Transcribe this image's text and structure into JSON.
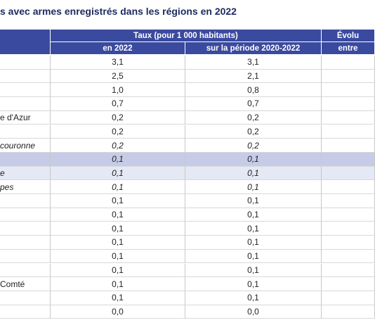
{
  "header": {
    "title": "s avec armes enregistrés dans les régions en 2022"
  },
  "table": {
    "group_headers": [
      "Taux (pour 1 000 habitants)",
      "Évolu"
    ],
    "columns": [
      "en 2022",
      "sur la période 2020-2022",
      "entre"
    ],
    "rows": [
      {
        "values": [
          "3,1",
          "3,1"
        ]
      },
      {
        "values": [
          "2,5",
          "2,1"
        ]
      },
      {
        "values": [
          "1,0",
          "0,8"
        ]
      },
      {
        "values": [
          "0,7",
          "0,7"
        ]
      },
      {
        "label": "e d'Azur",
        "values": [
          "0,2",
          "0,2"
        ]
      },
      {
        "values": [
          "0,2",
          "0,2"
        ]
      },
      {
        "label": "couronne",
        "values": [
          "0,2",
          "0,2"
        ],
        "italic": true
      },
      {
        "values": [
          "0,1",
          "0,1"
        ],
        "italic": true,
        "highlight": "strong"
      },
      {
        "label": "e",
        "values": [
          "0,1",
          "0,1"
        ],
        "italic": true,
        "highlight": "light"
      },
      {
        "label": "pes",
        "values": [
          "0,1",
          "0,1"
        ],
        "italic": true
      },
      {
        "values": [
          "0,1",
          "0,1"
        ]
      },
      {
        "values": [
          "0,1",
          "0,1"
        ]
      },
      {
        "values": [
          "0,1",
          "0,1"
        ]
      },
      {
        "values": [
          "0,1",
          "0,1"
        ]
      },
      {
        "values": [
          "0,1",
          "0,1"
        ]
      },
      {
        "values": [
          "0,1",
          "0,1"
        ]
      },
      {
        "label": "Comté",
        "values": [
          "0,1",
          "0,1"
        ]
      },
      {
        "values": [
          "0,1",
          "0,1"
        ]
      },
      {
        "values": [
          "0,0",
          "0,0"
        ]
      }
    ]
  }
}
